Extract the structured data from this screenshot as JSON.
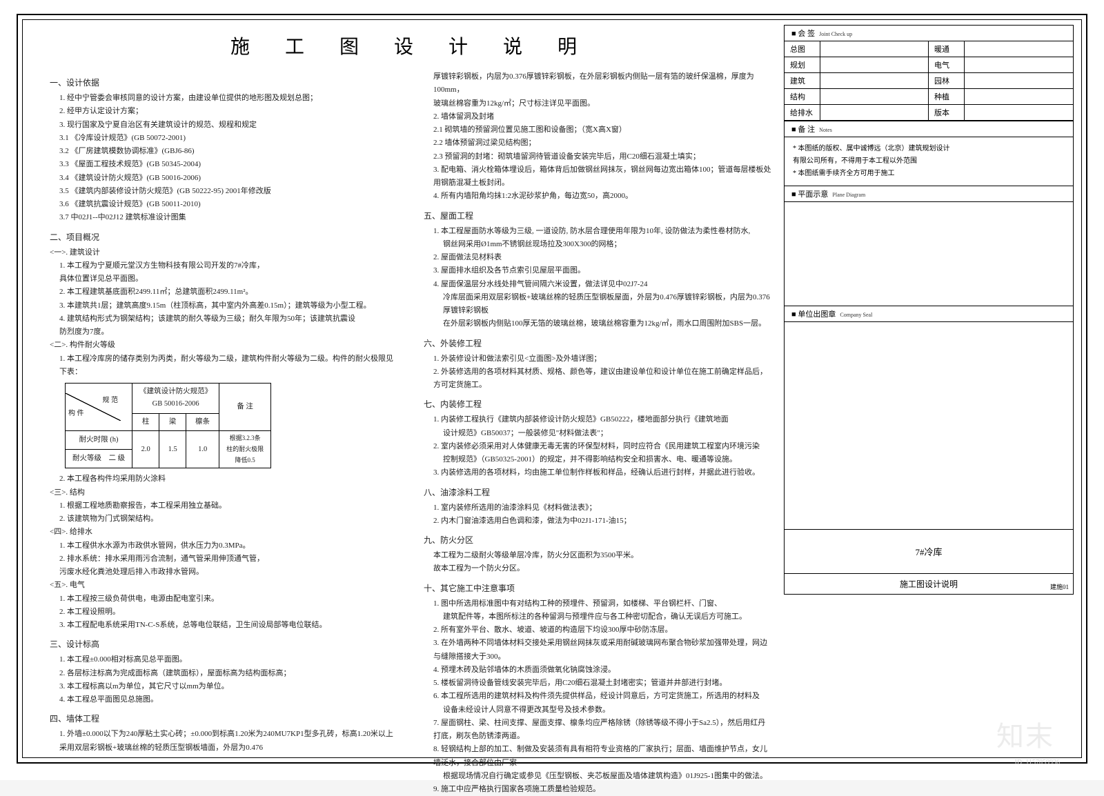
{
  "title": "施 工 图 设 计 说 明",
  "left": {
    "s1_h": "一、设计依据",
    "s1": [
      "1. 经中宁管委会审核同意的设计方案，由建设单位提供的地形图及规划总图；",
      "2. 经甲方认定设计方案；",
      "3. 现行国家及宁夏自治区有关建筑设计的规范、规程和规定",
      "3.1 《冷库设计规范》(GB 50072-2001)",
      "3.2 《厂房建筑模数协调标准》(GBJ6-86)",
      "3.3 《屋面工程技术规范》(GB 50345-2004)",
      "3.4 《建筑设计防火规范》(GB 50016-2006)",
      "3.5 《建筑内部装修设计防火规范》(GB 50222-95) 2001年修改版",
      "3.6 《建筑抗震设计规范》(GB 50011-2010)",
      "3.7 中02J1--中02J12 建筑标准设计图集"
    ],
    "s2_h": "二、项目概况",
    "s2a_h": "<一>. 建筑设计",
    "s2a": [
      "1. 本工程为宁夏顺元堂汉方生物科技有限公司开发的7#冷库，",
      "   具体位置详见总平面图。",
      "2. 本工程建筑基底面积2499.11㎡；总建筑面积2499.11m²。",
      "3. 本建筑共1层；建筑高度9.15m（柱顶标高，其中室内外高差0.15m）；建筑等级为小型工程。",
      "4. 建筑结构形式为钢架结构；该建筑的耐久等级为三级；耐久年限为50年；该建筑抗震设",
      "   防烈度为7度。"
    ],
    "s2b_h": "<二>. 构件耐火等级",
    "s2b_1": "1. 本工程冷库房的储存类别为丙类，耐火等级为二级，建筑构件耐火等级为二级。构件的耐火极限见下表：",
    "tbl": {
      "c_top": "规 范",
      "c_bot": "构 件",
      "c1": "《建筑设计防火规范》\nGB 50016-2006",
      "c2": "备 注",
      "r_label": "耐火时限 (h)",
      "sub_h": [
        "柱",
        "梁",
        "檩条"
      ],
      "row_l": "耐火等级",
      "row_v": "二 级",
      "vals": [
        "2.0",
        "1.5",
        "1.0"
      ],
      "note": "根据3.2.3条\n柱的耐火极限\n降低0.5"
    },
    "s2b_2": "2. 本工程各构件均采用防火涂料",
    "s2c_h": "<三>. 结构",
    "s2c": [
      "1. 根据工程地质勘察报告，本工程采用独立基础。",
      "2. 该建筑物为门式钢架结构。"
    ],
    "s2d_h": "<四>. 给排水",
    "s2d": [
      "1. 本工程供水水源为市政供水管网，供水压力为0.3MPa。",
      "2. 排水系统：排水采用雨污合流制，通气管采用伸顶通气管，",
      "   污废水经化粪池处理后排入市政排水管网。"
    ],
    "s2e_h": "<五>. 电气",
    "s2e": [
      "1. 本工程按三级负荷供电，电源由配电室引来。",
      "2. 本工程设照明。",
      "3. 本工程配电系统采用TN-C-S系统，总等电位联结，卫生间设局部等电位联结。"
    ],
    "s3_h": "三、设计标高",
    "s3": [
      "1. 本工程±0.000相对标高见总平面图。",
      "2. 各层标注标高为完成面标高（建筑面标），屋面标高为结构面标高；",
      "3. 本工程标高以m为单位，其它尺寸以mm为单位。",
      "4. 本工程总平面图见总施图。"
    ],
    "s4_h": "四、墙体工程",
    "s4": "1. 外墙±0.000以下为240厚粘土实心砖；±0.000到标高1.20米为240MU7KP1型多孔砖，标高1.20米以上采用双层彩钢板+玻璃丝棉的轻质压型钢板墙面，外层为0.476"
  },
  "right": {
    "r0": [
      "厚镀锌彩钢板，内层为0.376厚镀锌彩钢板，在外层彩钢板内侧贴一层有箔的玻纤保温棉，厚度为100mm，",
      "玻璃丝棉容重为12kg/㎡；尺寸标注详见平面图。"
    ],
    "r2h": "2. 墙体留洞及封堵",
    "r2": [
      "2.1 砌筑墙的预留洞位置见施工图和设备图；（宽X高X窗）",
      "2.2 墙体预留洞过梁见结构图；",
      "2.3 预留洞的封堵：砌筑墙留洞待管道设备安装完毕后，用C20细石混凝土填实；"
    ],
    "r3": "3. 配电箱、消火栓箱体埋设后，箱体背后加做钢丝网抹灰，钢丝网每边宽出箱体100；管道每层楼板处用钢筋混凝土板封闭。",
    "r4": "4. 所有内墙阳角均抹1:2水泥砂浆护角，每边宽50，高2000。",
    "s5_h": "五、屋面工程",
    "s5": [
      "1. 本工程屋面防水等级为三级, 一道设防, 防水层合理使用年限为10年, 设防做法为柔性卷材防水,",
      "   钢丝网采用Ø1mm不锈钢丝现场拉及300X300的网格；",
      "2. 屋面做法见材料表",
      "3. 屋面排水组织及各节点索引见屋层平面图。",
      "4. 屋面保温层分水线处排气管间隔六米设置，做法详见中02J7-24",
      "   冷库层面采用双层彩钢板+玻璃丝棉的轻质压型钢板屋面，外层为0.476厚镀锌彩钢板，内层为0.376厚镀锌彩钢板",
      "   在外层彩钢板内侧贴100厚无箔的玻璃丝棉，玻璃丝棉容重为12kg/㎡，雨水口周围附加SBS一层。"
    ],
    "s6_h": "六、外装修工程",
    "s6": [
      "1. 外装修设计和做法索引见<立面图>及外墙详图；",
      "2. 外装修选用的各项材料其材质、规格、颜色等，建议由建设单位和设计单位在施工前确定样品后，方可定货施工。"
    ],
    "s7_h": "七、内装修工程",
    "s7": [
      "1. 内装修工程执行《建筑内部装修设计防火规范》GB50222，楼地面部分执行《建筑地面",
      "   设计规范》GB50037；一般装修见\"材料做法表\"；",
      "2. 室内装修必须采用对人体健康无毒无害的环保型材料，同时应符合《民用建筑工程室内环境污染",
      "   控制规范》（GB50325-2001）的规定，并不得影响结构安全和损害水、电、暖通等设施。",
      "3. 内装修选用的各项材料，均由施工单位制作样板和样品，经确认后进行封样，并据此进行验收。"
    ],
    "s8_h": "八、油漆涂料工程",
    "s8": [
      "1. 室内装修所选用的油漆涂料见《材料做法表》；",
      "2. 内木门窗油漆选用白色调和漆，做法为中02J1-171-油15；"
    ],
    "s9_h": "九、防火分区",
    "s9": [
      "本工程为二级耐火等级单层冷库，防火分区面积为3500平米。",
      "故本工程为一个防火分区。"
    ],
    "s10_h": "十、其它施工中注意事项",
    "s10": [
      "1. 图中所选用标准图中有对结构工种的预埋件、预留洞，如楼梯、平台钢栏杆、门窗、",
      "   建筑配件等，本图所标注的各种留洞与预埋件应与各工种密切配合，确认无误后方可施工。",
      "2. 所有室外平台、散水、坡道、坡道的构造层下均设300厚中砂防冻层。",
      "3. 在外墙两种不同墙体材料交接处采用钢丝网抹灰或采用耐碱玻璃网布聚合物砂浆加强带处理，网边与缝隙搭接大于300。",
      "4. 预埋木砖及贴邻墙体的木质面须做氧化钠腐蚀涂浸。",
      "5. 楼板留洞待设备管线安装完毕后，用C20细石混凝土封堵密实；管道并井部进行封堵。",
      "6. 本工程所选用的建筑材料及构件须先提供样品，经设计同意后，方可定货施工，所选用的材料及",
      "   设备未经设计人同意不得更改其型号及技术参数。",
      "7. 屋面钢柱、梁、柱间支撑、屋面支撑、檩条均应严格除锈（除锈等级不得小于Sa2.5），然后用红丹打底，刷灰色防锈漆两道。",
      "8. 轻钢结构上部的加工、制做及安装须有具有相符专业资格的厂家执行；层面、墙面维护节点，女儿墙泛水，接合部位由厂家",
      "   根据现场情况自行确定或参见《压型钢板、夹芯板屋面及墙体建筑构造》01J925-1图集中的做法。",
      "9. 施工中应严格执行国家各项施工质量检验规范。"
    ]
  },
  "sidebar": {
    "joint": {
      "title": "会 签",
      "en": "Joint Check up",
      "rows": [
        [
          "总图",
          "",
          "暖通",
          ""
        ],
        [
          "规划",
          "",
          "电气",
          ""
        ],
        [
          "建筑",
          "",
          "园林",
          ""
        ],
        [
          "结构",
          "",
          "种植",
          ""
        ],
        [
          "给排水",
          "",
          "版本",
          ""
        ]
      ]
    },
    "notes": {
      "title": "备 注",
      "en": "Notes",
      "lines": [
        "* 本图纸的版权、属中诚博远（北京）建筑规划设计",
        "  有限公司所有，不得用于本工程以外范围",
        "* 本图纸需手续齐全方可用于施工"
      ]
    },
    "plan": {
      "title": "平面示意",
      "en": "Plane Diagram"
    },
    "seal": {
      "title": "单位出图章",
      "en": "Company Seal"
    },
    "sheet_name": "7#冷库",
    "sheet_sub": "施工图设计说明",
    "dwg": "建施01"
  },
  "watermark": "知末",
  "wm_id": "ID: 1157059936"
}
